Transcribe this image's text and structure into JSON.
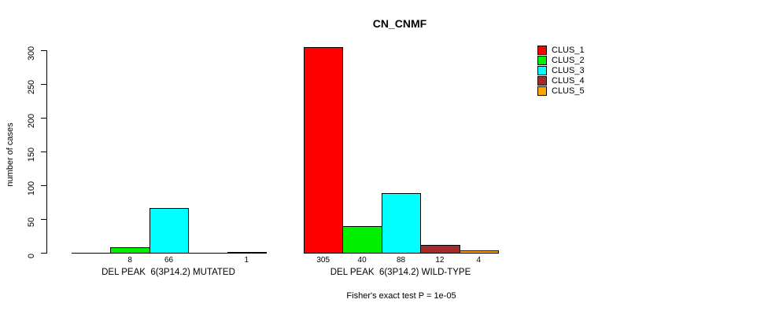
{
  "header": {
    "title": "CN_CNMF"
  },
  "chart_data": {
    "type": "bar",
    "title": "CN_CNMF",
    "xlabel": "",
    "ylabel": "number of cases",
    "ylim": [
      0,
      300
    ],
    "yticks": [
      0,
      50,
      100,
      150,
      200,
      250,
      300
    ],
    "grid": false,
    "legend_position": "right-outside-top",
    "categories": [
      "DEL PEAK  6(3P14.2) MUTATED",
      "DEL PEAK  6(3P14.2) WILD-TYPE"
    ],
    "series": [
      {
        "name": "CLUS_1",
        "color": "#ff0000",
        "values": [
          0,
          305
        ]
      },
      {
        "name": "CLUS_2",
        "color": "#00f000",
        "values": [
          8,
          40
        ]
      },
      {
        "name": "CLUS_3",
        "color": "#00ffff",
        "values": [
          66,
          88
        ]
      },
      {
        "name": "CLUS_4",
        "color": "#a52a2a",
        "values": [
          0,
          12
        ]
      },
      {
        "name": "CLUS_5",
        "color": "#ffa500",
        "values": [
          1,
          4
        ]
      }
    ],
    "bar_value_labels": [
      [
        "",
        "8",
        "66",
        "",
        "1"
      ],
      [
        "305",
        "40",
        "88",
        "12",
        "4"
      ]
    ],
    "annotation": "Fisher's exact test P = 1e-05"
  },
  "legend": {
    "items": [
      {
        "label": "CLUS_1",
        "color": "#ff0000"
      },
      {
        "label": "CLUS_2",
        "color": "#00f000"
      },
      {
        "label": "CLUS_3",
        "color": "#00ffff"
      },
      {
        "label": "CLUS_4",
        "color": "#a52a2a"
      },
      {
        "label": "CLUS_5",
        "color": "#ffa500"
      }
    ]
  },
  "footer": {
    "caption": "Fisher's exact test P = 1e-05"
  }
}
